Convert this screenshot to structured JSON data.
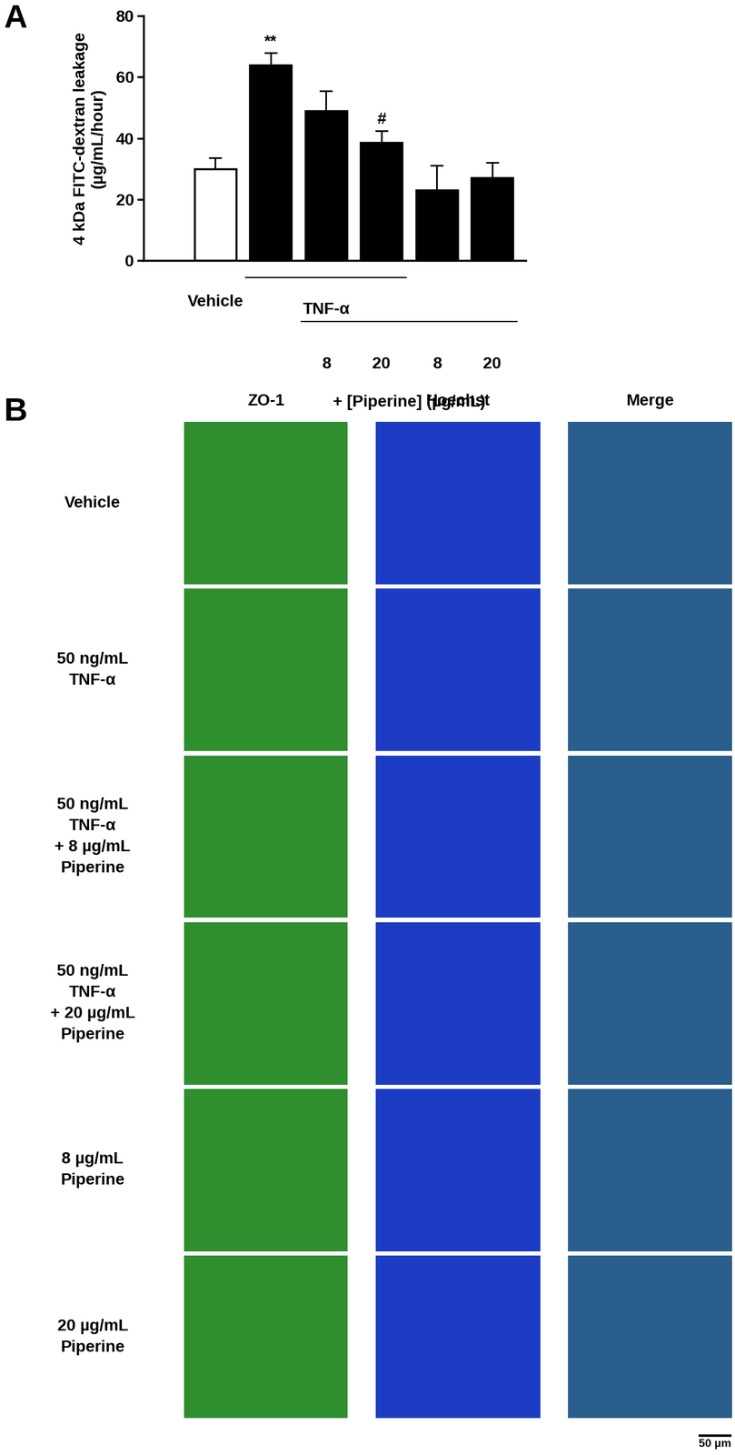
{
  "chart_data": {
    "type": "bar",
    "ylabel": "4 kDa FITC-dextran leakage\n(µg/mL/hour)",
    "categories": [
      "Vehicle",
      null,
      "8",
      "20",
      "8",
      "20"
    ],
    "values": [
      30,
      64,
      49,
      38.5,
      23,
      27
    ],
    "errors": [
      3.5,
      4,
      6.5,
      4,
      8,
      5
    ],
    "significance": [
      null,
      "**",
      null,
      "#",
      null,
      null
    ],
    "colors": [
      "#ffffff",
      "#000000",
      "#000000",
      "#000000",
      "#000000",
      "#000000"
    ],
    "groups": [
      {
        "label": "TNF-α",
        "from": 1,
        "to": 3
      },
      {
        "label": "+ [Piperine] (µg/mL)",
        "from": 2,
        "to": 5
      }
    ],
    "ylim": [
      0,
      80
    ],
    "yticks": [
      0,
      20,
      40,
      60,
      80
    ],
    "grid": false
  },
  "panel_labels": [
    "A",
    "B"
  ],
  "panel_b": {
    "columns": [
      "ZO-1",
      "Hoechst",
      "Merge"
    ],
    "rows": [
      "Vehicle",
      "50 ng/mL\nTNF-α",
      "50 ng/mL\nTNF-α\n+ 8 µg/mL\nPiperine",
      "50 ng/mL\nTNF-α\n+ 20 µg/mL\nPiperine",
      "8 µg/mL\nPiperine",
      "20 µg/mL\nPiperine"
    ],
    "scale_bar": "50 µm"
  }
}
